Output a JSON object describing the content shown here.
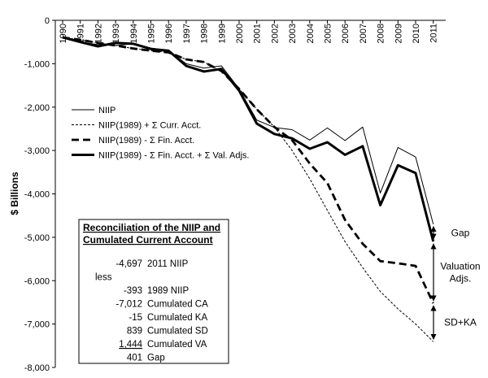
{
  "chart_data": {
    "type": "line",
    "title": "",
    "xlabel": "",
    "ylabel": "$ Billions",
    "ylim": [
      -8000,
      0
    ],
    "yticks": [
      0,
      -1000,
      -2000,
      -3000,
      -4000,
      -5000,
      -6000,
      -7000,
      -8000
    ],
    "ytick_labels": [
      "0",
      "-1,000",
      "-2,000",
      "-3,000",
      "-4,000",
      "-5,000",
      "-6,000",
      "-7,000",
      "-8,000"
    ],
    "categories": [
      "1990",
      "1991",
      "1992",
      "1993",
      "1994",
      "1995",
      "1996",
      "1997",
      "1998",
      "1999",
      "2000",
      "2001",
      "2002",
      "2003",
      "2004",
      "2005",
      "2006",
      "2007",
      "2008",
      "2009",
      "2010",
      "2011"
    ],
    "series": [
      {
        "name": "NIIP",
        "style": "thin-solid",
        "values": [
          -393,
          -500,
          -560,
          -580,
          -540,
          -640,
          -700,
          -1000,
          -1100,
          -1050,
          -1580,
          -2300,
          -2470,
          -2520,
          -2760,
          -2480,
          -2770,
          -2460,
          -3980,
          -2930,
          -3150,
          -4697
        ]
      },
      {
        "name": "NIIP(1989) + Σ Curr. Acct.",
        "style": "thin-dotted",
        "values": [
          -393,
          -450,
          -520,
          -580,
          -650,
          -700,
          -740,
          -900,
          -960,
          -1170,
          -1580,
          -2050,
          -2460,
          -3000,
          -3650,
          -4380,
          -5100,
          -5700,
          -6250,
          -6650,
          -7000,
          -7405
        ]
      },
      {
        "name": "NIIP(1989) - Σ Fin. Acct.",
        "style": "thick-dashed",
        "values": [
          -393,
          -450,
          -520,
          -580,
          -650,
          -700,
          -740,
          -900,
          -960,
          -1170,
          -1580,
          -2050,
          -2460,
          -2760,
          -3300,
          -3750,
          -4600,
          -5150,
          -5550,
          -5600,
          -5660,
          -6520
        ]
      },
      {
        "name": "NIIP(1989) - Σ Fin. Acct. + Σ Val. Adjs.",
        "style": "thick-solid",
        "values": [
          -393,
          -500,
          -600,
          -520,
          -540,
          -660,
          -700,
          -1050,
          -1180,
          -1120,
          -1620,
          -2380,
          -2620,
          -2720,
          -2960,
          -2810,
          -3100,
          -2900,
          -4260,
          -3340,
          -3520,
          -5097
        ]
      }
    ],
    "legend": {
      "position": "upper-left"
    },
    "annotations": [
      {
        "text": "Gap",
        "from_value": -4697,
        "to_value": -5097
      },
      {
        "text": "Valuation\nAdjs.",
        "from_value": -5097,
        "to_value": -6520
      },
      {
        "text": "SD+KA",
        "from_value": -6520,
        "to_value": -7405
      }
    ],
    "reconciliation_box": {
      "title_line1": "Reconciliation of the NIIP and",
      "title_line2": "Cumulated Current Account",
      "rows": [
        {
          "value": "-4,697",
          "label": "2011 NIIP"
        },
        {
          "value": "less",
          "label": ""
        },
        {
          "value": "-393",
          "label": "1989 NIIP"
        },
        {
          "value": "-7,012",
          "label": "Cumulated CA"
        },
        {
          "value": "-15",
          "label": "Cumulated KA"
        },
        {
          "value": "839",
          "label": "Cumulated SD"
        },
        {
          "value": "1,444",
          "label": "Cumulated VA",
          "underline": true
        },
        {
          "value": "401",
          "label": "Gap"
        }
      ]
    }
  }
}
